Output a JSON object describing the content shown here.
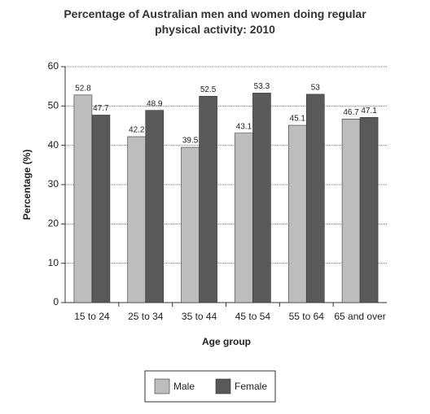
{
  "chart_data": {
    "type": "bar",
    "title": "Percentage of Australian men and women doing regular physical activity: 2010",
    "x_label": "Age group",
    "y_label": "Percentage (%)",
    "categories": [
      "15 to 24",
      "25 to 34",
      "35 to 44",
      "45 to 54",
      "55 to 64",
      "65 and over"
    ],
    "series": [
      {
        "name": "Male",
        "color": "#bdbdbd",
        "values": [
          52.8,
          42.2,
          39.5,
          43.1,
          45.1,
          46.7
        ]
      },
      {
        "name": "Female",
        "color": "#595959",
        "values": [
          47.7,
          48.9,
          52.5,
          53.3,
          53,
          47.1
        ]
      }
    ],
    "ylim": [
      0,
      60
    ],
    "yticks": [
      0,
      10,
      20,
      30,
      40,
      50,
      60
    ],
    "grid": true
  }
}
